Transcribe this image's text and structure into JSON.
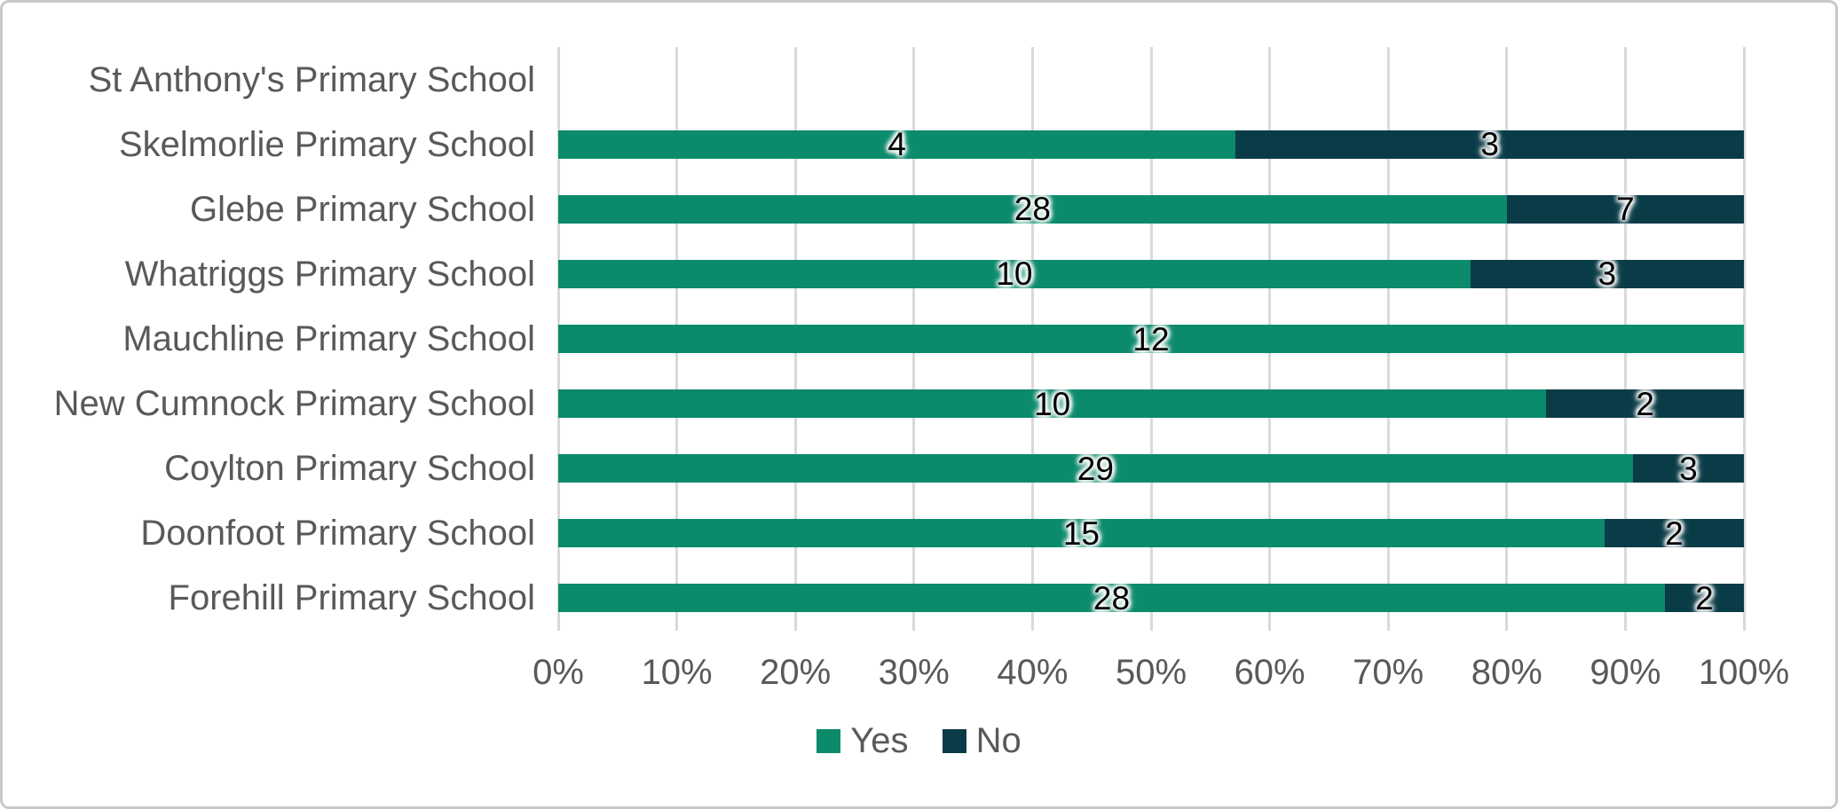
{
  "chart_data": {
    "type": "bar",
    "variant": "stacked-100-horizontal",
    "categories": [
      "St Anthony's Primary School",
      "Skelmorlie Primary School",
      "Glebe Primary School",
      "Whatriggs Primary School",
      "Mauchline Primary School",
      "New Cumnock Primary School",
      "Coylton Primary School",
      "Doonfoot Primary School",
      "Forehill Primary School"
    ],
    "series": [
      {
        "name": "Yes",
        "color": "#0b8a6c",
        "values": [
          null,
          4,
          28,
          10,
          12,
          10,
          29,
          15,
          28
        ]
      },
      {
        "name": "No",
        "color": "#0a3c47",
        "values": [
          null,
          3,
          7,
          3,
          null,
          2,
          3,
          2,
          2
        ]
      }
    ],
    "x_ticks": [
      "0%",
      "10%",
      "20%",
      "30%",
      "40%",
      "50%",
      "60%",
      "70%",
      "80%",
      "90%",
      "100%"
    ],
    "xlim": [
      0,
      100
    ],
    "grid": "vertical-major",
    "legend_position": "bottom",
    "colors": {
      "axis_text": "#595959",
      "category_text": "#595959",
      "gridline": "#d9d9d9",
      "data_label": "#000000",
      "data_label_halo": "#ffffff",
      "chart_border": "#c9c9c9",
      "background": "#ffffff"
    }
  }
}
